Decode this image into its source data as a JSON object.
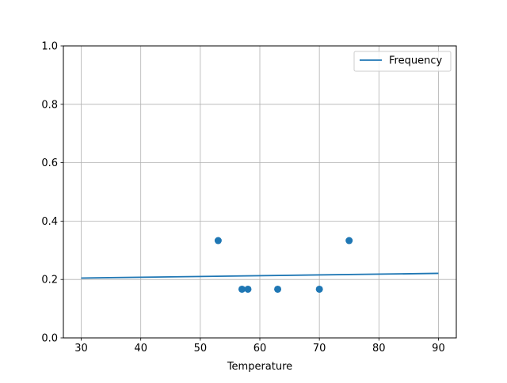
{
  "chart_data": {
    "type": "scatter",
    "title": "",
    "xlabel": "Temperature",
    "ylabel": "",
    "xlim": [
      27,
      93
    ],
    "ylim": [
      0,
      1
    ],
    "xticks": [
      30,
      40,
      50,
      60,
      70,
      80,
      90
    ],
    "yticks": [
      0.0,
      0.2,
      0.4,
      0.6,
      0.8,
      1.0
    ],
    "xtick_labels": [
      "30",
      "40",
      "50",
      "60",
      "70",
      "80",
      "90"
    ],
    "ytick_labels": [
      "0.0",
      "0.2",
      "0.4",
      "0.6",
      "0.8",
      "1.0"
    ],
    "grid": true,
    "legend_placement": "top-right",
    "color": "#1f77b4",
    "scatter": {
      "x": [
        53,
        57,
        58,
        63,
        70,
        75
      ],
      "y": [
        0.3333,
        0.1667,
        0.1667,
        0.1667,
        0.1667,
        0.3333
      ]
    },
    "line": {
      "name": "Frequency",
      "x": [
        30,
        90
      ],
      "y": [
        0.205,
        0.221
      ]
    }
  }
}
